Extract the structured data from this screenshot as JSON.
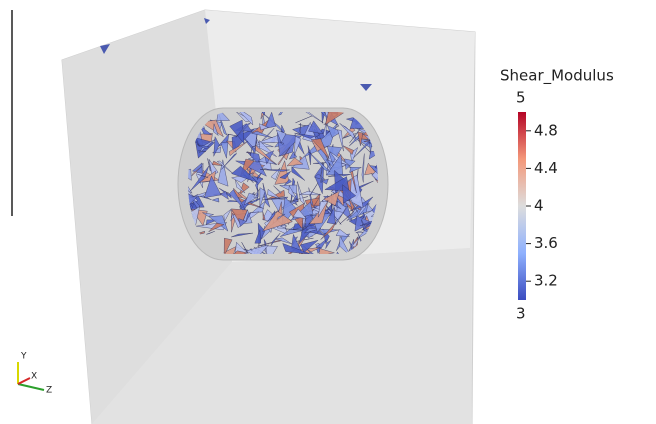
{
  "colorbar": {
    "title": "Shear_Modulus",
    "min": 3,
    "max": 5,
    "ticks": [
      4.8,
      4.4,
      4,
      3.6,
      3.2
    ]
  },
  "orientation_axes": {
    "y": "Y",
    "x": "X",
    "z": "Z"
  }
}
